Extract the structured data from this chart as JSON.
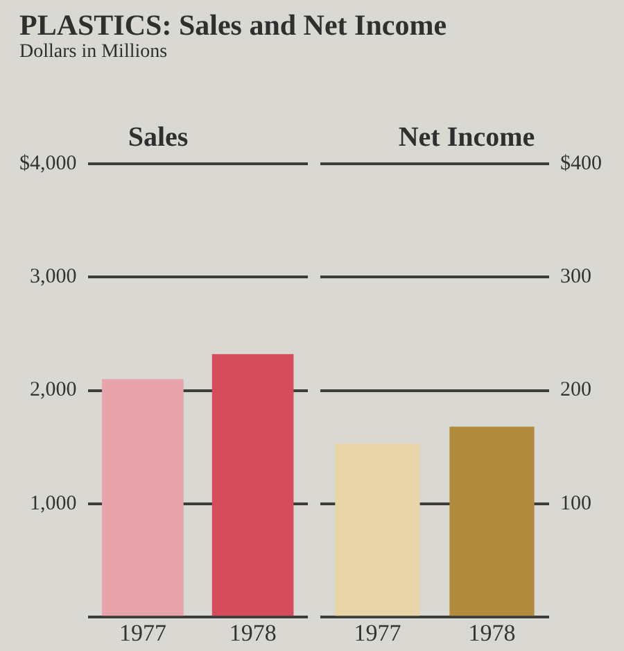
{
  "chart_data": [
    {
      "type": "other",
      "title": "PLASTICS: Sales and Net Income",
      "subtitle": "Dollars in Millions"
    },
    {
      "type": "bar",
      "title": "Sales",
      "categories": [
        "1977",
        "1978"
      ],
      "series": [
        {
          "colors": [
            "#e9a3ab",
            "#d64c5c"
          ],
          "values": [
            2100,
            2320
          ]
        }
      ],
      "ylim": [
        0,
        4000
      ],
      "yticks": [
        {
          "value": 0,
          "label": null
        },
        {
          "value": 1000,
          "label": "1,000"
        },
        {
          "value": 2000,
          "label": "2,000"
        },
        {
          "value": 3000,
          "label": "3,000"
        },
        {
          "value": 4000,
          "label": "$4,000"
        }
      ],
      "tick_labels": "xy",
      "grid": "y"
    },
    {
      "type": "bar",
      "title": "Net Income",
      "categories": [
        "1977",
        "1978"
      ],
      "series": [
        {
          "colors": [
            "#e8d5a8",
            "#b38b3e"
          ],
          "values": [
            153,
            168
          ],
          "axis": "y2"
        }
      ],
      "y2lim": [
        0,
        400
      ],
      "y2ticks": [
        {
          "value": 0,
          "label": null
        },
        100,
        200,
        300,
        {
          "value": 400,
          "label": "$400"
        }
      ],
      "tick_labels": "xy",
      "grid": "y"
    }
  ]
}
